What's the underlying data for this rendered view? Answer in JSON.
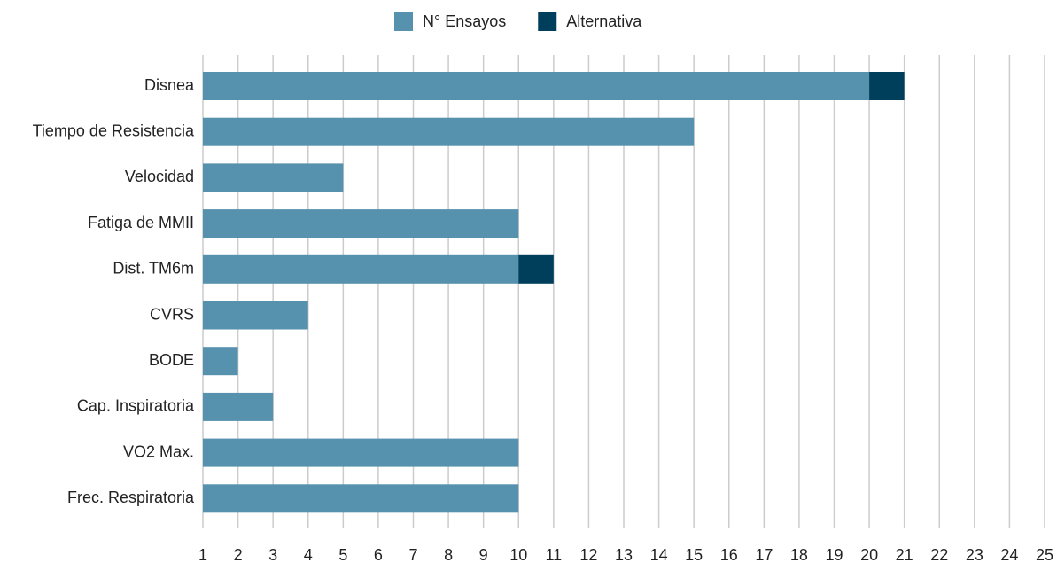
{
  "chart_data": {
    "type": "stacked_barh",
    "categories": [
      "Disnea",
      "Tiempo de Resistencia",
      "Velocidad",
      "Fatiga de MMII",
      "Dist. TM6m",
      "CVRS",
      "BODE",
      "Cap. Inspiratoria",
      "VO2 Max.",
      "Frec. Respiratoria"
    ],
    "series": [
      {
        "name": "N° Ensayos",
        "color": "#5691ad",
        "values": [
          20,
          15,
          5,
          10,
          10,
          4,
          2,
          3,
          10,
          10
        ]
      },
      {
        "name": "Alternativa",
        "color": "#003f5c",
        "values": [
          1,
          0,
          0,
          0,
          1,
          0,
          0,
          0,
          0,
          0
        ]
      }
    ],
    "xlim": [
      1,
      25
    ],
    "xticks": [
      1,
      2,
      3,
      4,
      5,
      6,
      7,
      8,
      9,
      10,
      11,
      12,
      13,
      14,
      15,
      16,
      17,
      18,
      19,
      20,
      21,
      22,
      23,
      24,
      25
    ],
    "grid": true,
    "legend": "top"
  }
}
